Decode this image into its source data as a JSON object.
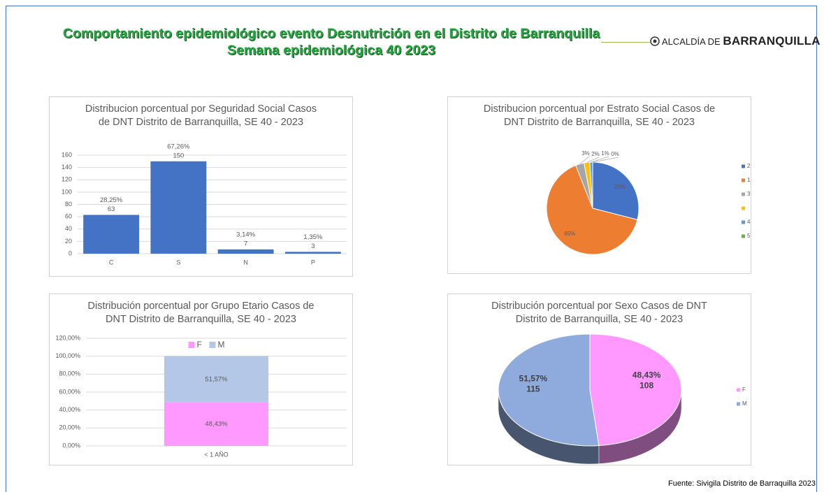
{
  "title": "Comportamiento epidemiológico evento Desnutrición en el Distrito de Barranquilla Semana epidemiológica 40 2023",
  "logo": {
    "prefix": "ALCALDÍA DE",
    "name": "BARRANQUILLA"
  },
  "source": "Fuente: Sivigila Distrito de Barraquilla 2023",
  "chart_data": [
    {
      "type": "bar",
      "title": "Distribucion porcentual por Seguridad Social Casos de DNT Distrito de Barranquilla, SE 40 - 2023",
      "categories": [
        "C",
        "S",
        "N",
        "P"
      ],
      "values": [
        63,
        150,
        7,
        3
      ],
      "percent_labels": [
        "28,25%",
        "67,26%",
        "3,14%",
        "1,35%"
      ],
      "color": "#4472c4",
      "ylim": [
        0,
        160
      ],
      "yticks": [
        0,
        20,
        40,
        60,
        80,
        100,
        120,
        140,
        160
      ],
      "grid": true
    },
    {
      "type": "pie",
      "title": "Distribucion porcentual por Estrato Social Casos de DNT Distrito de Barranquilla, SE 40 - 2023",
      "categories": [
        "2",
        "1",
        "3",
        null,
        "4",
        "5"
      ],
      "values": [
        29,
        65,
        3,
        2,
        1,
        0
      ],
      "value_labels": [
        "29%",
        "65%",
        "3%",
        "2%",
        "1%",
        "0%"
      ],
      "colors": [
        "#4472c4",
        "#ed7d31",
        "#a5a5a5",
        "#ffc000",
        "#5b9bd5",
        "#70ad47"
      ],
      "legend": "right"
    },
    {
      "type": "bar",
      "stacked": true,
      "title": "Distribución porcentual por Grupo Etario Casos de DNT Distrito de Barranquilla, SE 40 - 2023",
      "categories": [
        "< 1 AÑO"
      ],
      "series": [
        {
          "name": "F",
          "color": "#ff99ff",
          "values": [
            48.43
          ],
          "value_labels": [
            "48,43%"
          ]
        },
        {
          "name": "M",
          "color": "#b4c7e7",
          "values": [
            51.57
          ],
          "value_labels": [
            "51,57%"
          ]
        }
      ],
      "ylim": [
        0,
        120
      ],
      "yticks": [
        {
          "value": 0,
          "label": "0,00%"
        },
        {
          "value": 20,
          "label": "20,00%"
        },
        {
          "value": 40,
          "label": "40,00%"
        },
        {
          "value": 60,
          "label": "60,00%"
        },
        {
          "value": 80,
          "label": "80,00%"
        },
        {
          "value": 100,
          "label": "100,00%"
        },
        {
          "value": 120,
          "label": "120,00%"
        }
      ],
      "grid": true,
      "legend": "top"
    },
    {
      "type": "pie",
      "three_d": true,
      "title": "Distribución porcentual por Sexo Casos de DNT Distrito de Barranquilla, SE 40 - 2023",
      "categories": [
        "F",
        "M"
      ],
      "values": [
        48.43,
        51.57
      ],
      "value_labels": [
        "48,43%",
        "51,57%"
      ],
      "counts": [
        108,
        115
      ],
      "colors": [
        "#ff99ff",
        "#8faadc"
      ],
      "legend": "right"
    }
  ]
}
